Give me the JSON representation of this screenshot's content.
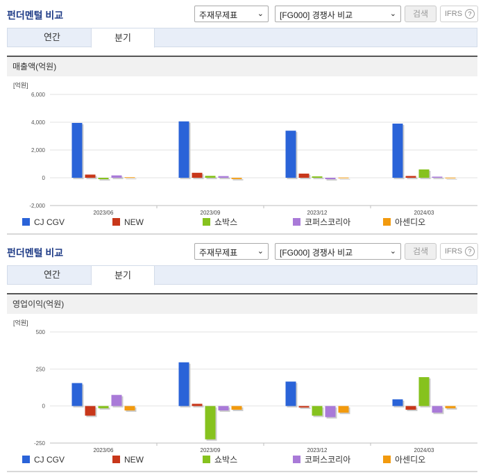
{
  "panels": [
    {
      "title": "펀더멘털 비교",
      "select1": "주재무제표",
      "select2": "[FG000] 경쟁사 비교",
      "search_label": "검색",
      "ifrs_label": "IFRS",
      "ifrs_help": "?",
      "tabs": [
        {
          "label": "연간"
        },
        {
          "label": "분기"
        }
      ],
      "active_tab": 1,
      "section_title": "매출액(억원)"
    },
    {
      "title": "펀더멘털 비교",
      "select1": "주재무제표",
      "select2": "[FG000] 경쟁사 비교",
      "search_label": "검색",
      "ifrs_label": "IFRS",
      "ifrs_help": "?",
      "tabs": [
        {
          "label": "연간"
        },
        {
          "label": "분기"
        }
      ],
      "active_tab": 1,
      "section_title": "영업이익(억원)"
    }
  ],
  "chart_data": [
    {
      "type": "bar",
      "unit_label": "[억원]",
      "categories": [
        "2023/06",
        "2023/09",
        "2023/12",
        "2024/03"
      ],
      "ylim": [
        -2000,
        6000
      ],
      "yticks": [
        6000,
        4000,
        2000,
        0,
        -2000
      ],
      "ytick_labels": [
        "6,000",
        "4,000",
        "2,000",
        "0",
        "-2,000"
      ],
      "series": [
        {
          "name": "CJ CGV",
          "color": "#2a63d8",
          "values": [
            3950,
            4060,
            3390,
            3900
          ]
        },
        {
          "name": "NEW",
          "color": "#c8371a",
          "values": [
            230,
            360,
            300,
            130
          ]
        },
        {
          "name": "쇼박스",
          "color": "#86c21e",
          "values": [
            -100,
            140,
            100,
            600
          ]
        },
        {
          "name": "코퍼스코리아",
          "color": "#a97ad8",
          "values": [
            170,
            120,
            -100,
            80
          ]
        },
        {
          "name": "아센디오",
          "color": "#f29a0e",
          "values": [
            40,
            -90,
            15,
            10
          ]
        }
      ]
    },
    {
      "type": "bar",
      "unit_label": "[억원]",
      "categories": [
        "2023/06",
        "2023/09",
        "2023/12",
        "2024/03"
      ],
      "ylim": [
        -250,
        500
      ],
      "yticks": [
        500,
        250,
        0,
        -250
      ],
      "ytick_labels": [
        "500",
        "250",
        "0",
        "-250"
      ],
      "series": [
        {
          "name": "CJ CGV",
          "color": "#2a63d8",
          "values": [
            155,
            295,
            165,
            45
          ]
        },
        {
          "name": "NEW",
          "color": "#c8371a",
          "values": [
            -65,
            15,
            -10,
            -25
          ]
        },
        {
          "name": "쇼박스",
          "color": "#86c21e",
          "values": [
            -15,
            -225,
            -65,
            195
          ]
        },
        {
          "name": "코퍼스코리아",
          "color": "#a97ad8",
          "values": [
            75,
            -30,
            -75,
            -45
          ]
        },
        {
          "name": "아센디오",
          "color": "#f29a0e",
          "values": [
            -30,
            -25,
            -45,
            -15
          ]
        }
      ]
    }
  ]
}
